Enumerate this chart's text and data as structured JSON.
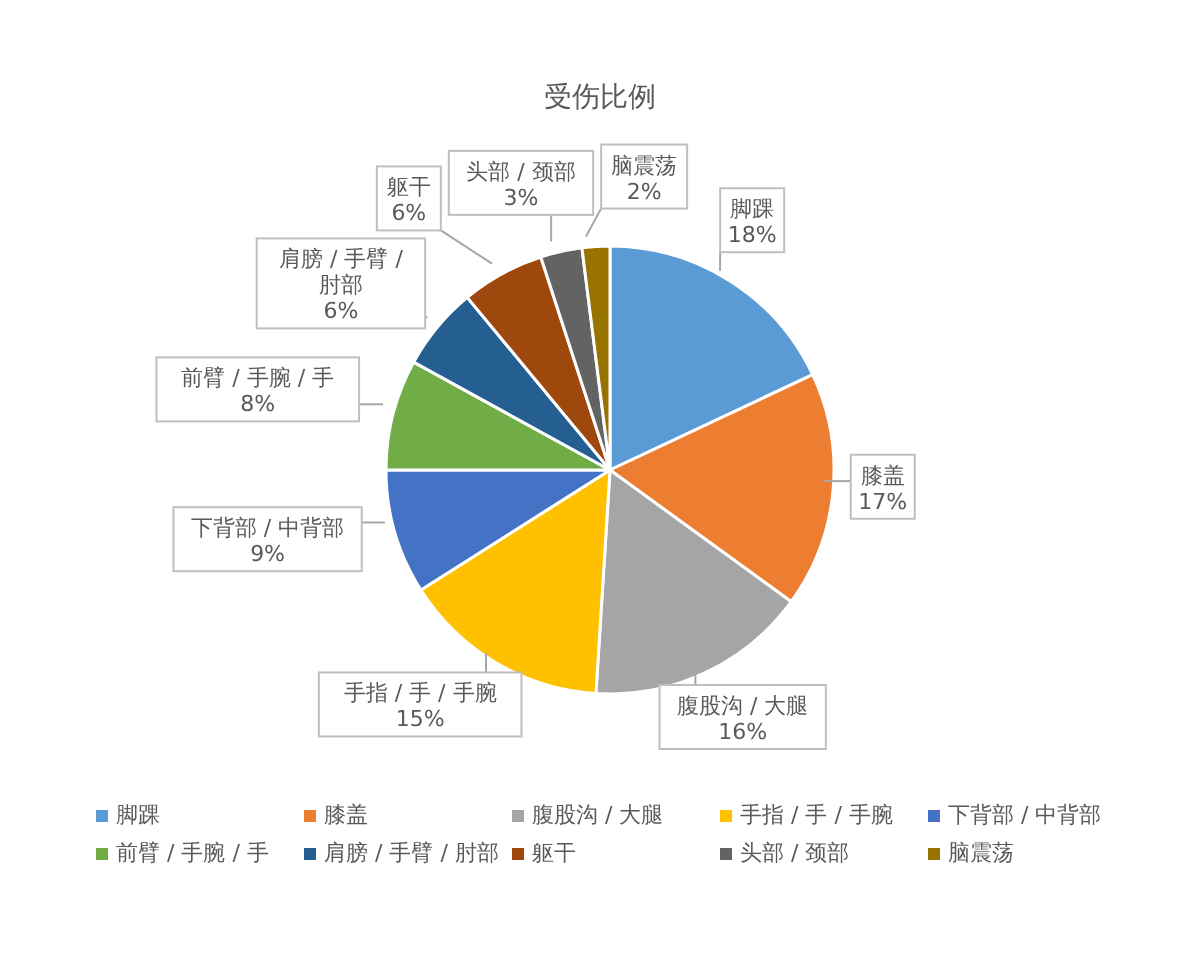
{
  "chart_data": {
    "type": "pie",
    "title": "受伤比例",
    "categories": [
      "脚踝",
      "膝盖",
      "腹股沟 / 大腿",
      "手指 / 手 / 手腕",
      "下背部 / 中背部",
      "前臂 / 手腕 / 手",
      "肩膀 / 手臂 / 肘部",
      "躯干",
      "头部 / 颈部",
      "脑震荡"
    ],
    "values": [
      18,
      17,
      16,
      15,
      9,
      8,
      6,
      6,
      3,
      2
    ],
    "value_labels": [
      "18%",
      "17%",
      "16%",
      "15%",
      "9%",
      "8%",
      "6%",
      "6%",
      "3%",
      "2%"
    ],
    "colors": [
      "#5b9bd5",
      "#ed7d31",
      "#a5a5a5",
      "#ffc000",
      "#4472c4",
      "#70ad47",
      "#255e91",
      "#9e480e",
      "#636363",
      "#997300"
    ],
    "data_labels": true,
    "legend": "bottom"
  }
}
